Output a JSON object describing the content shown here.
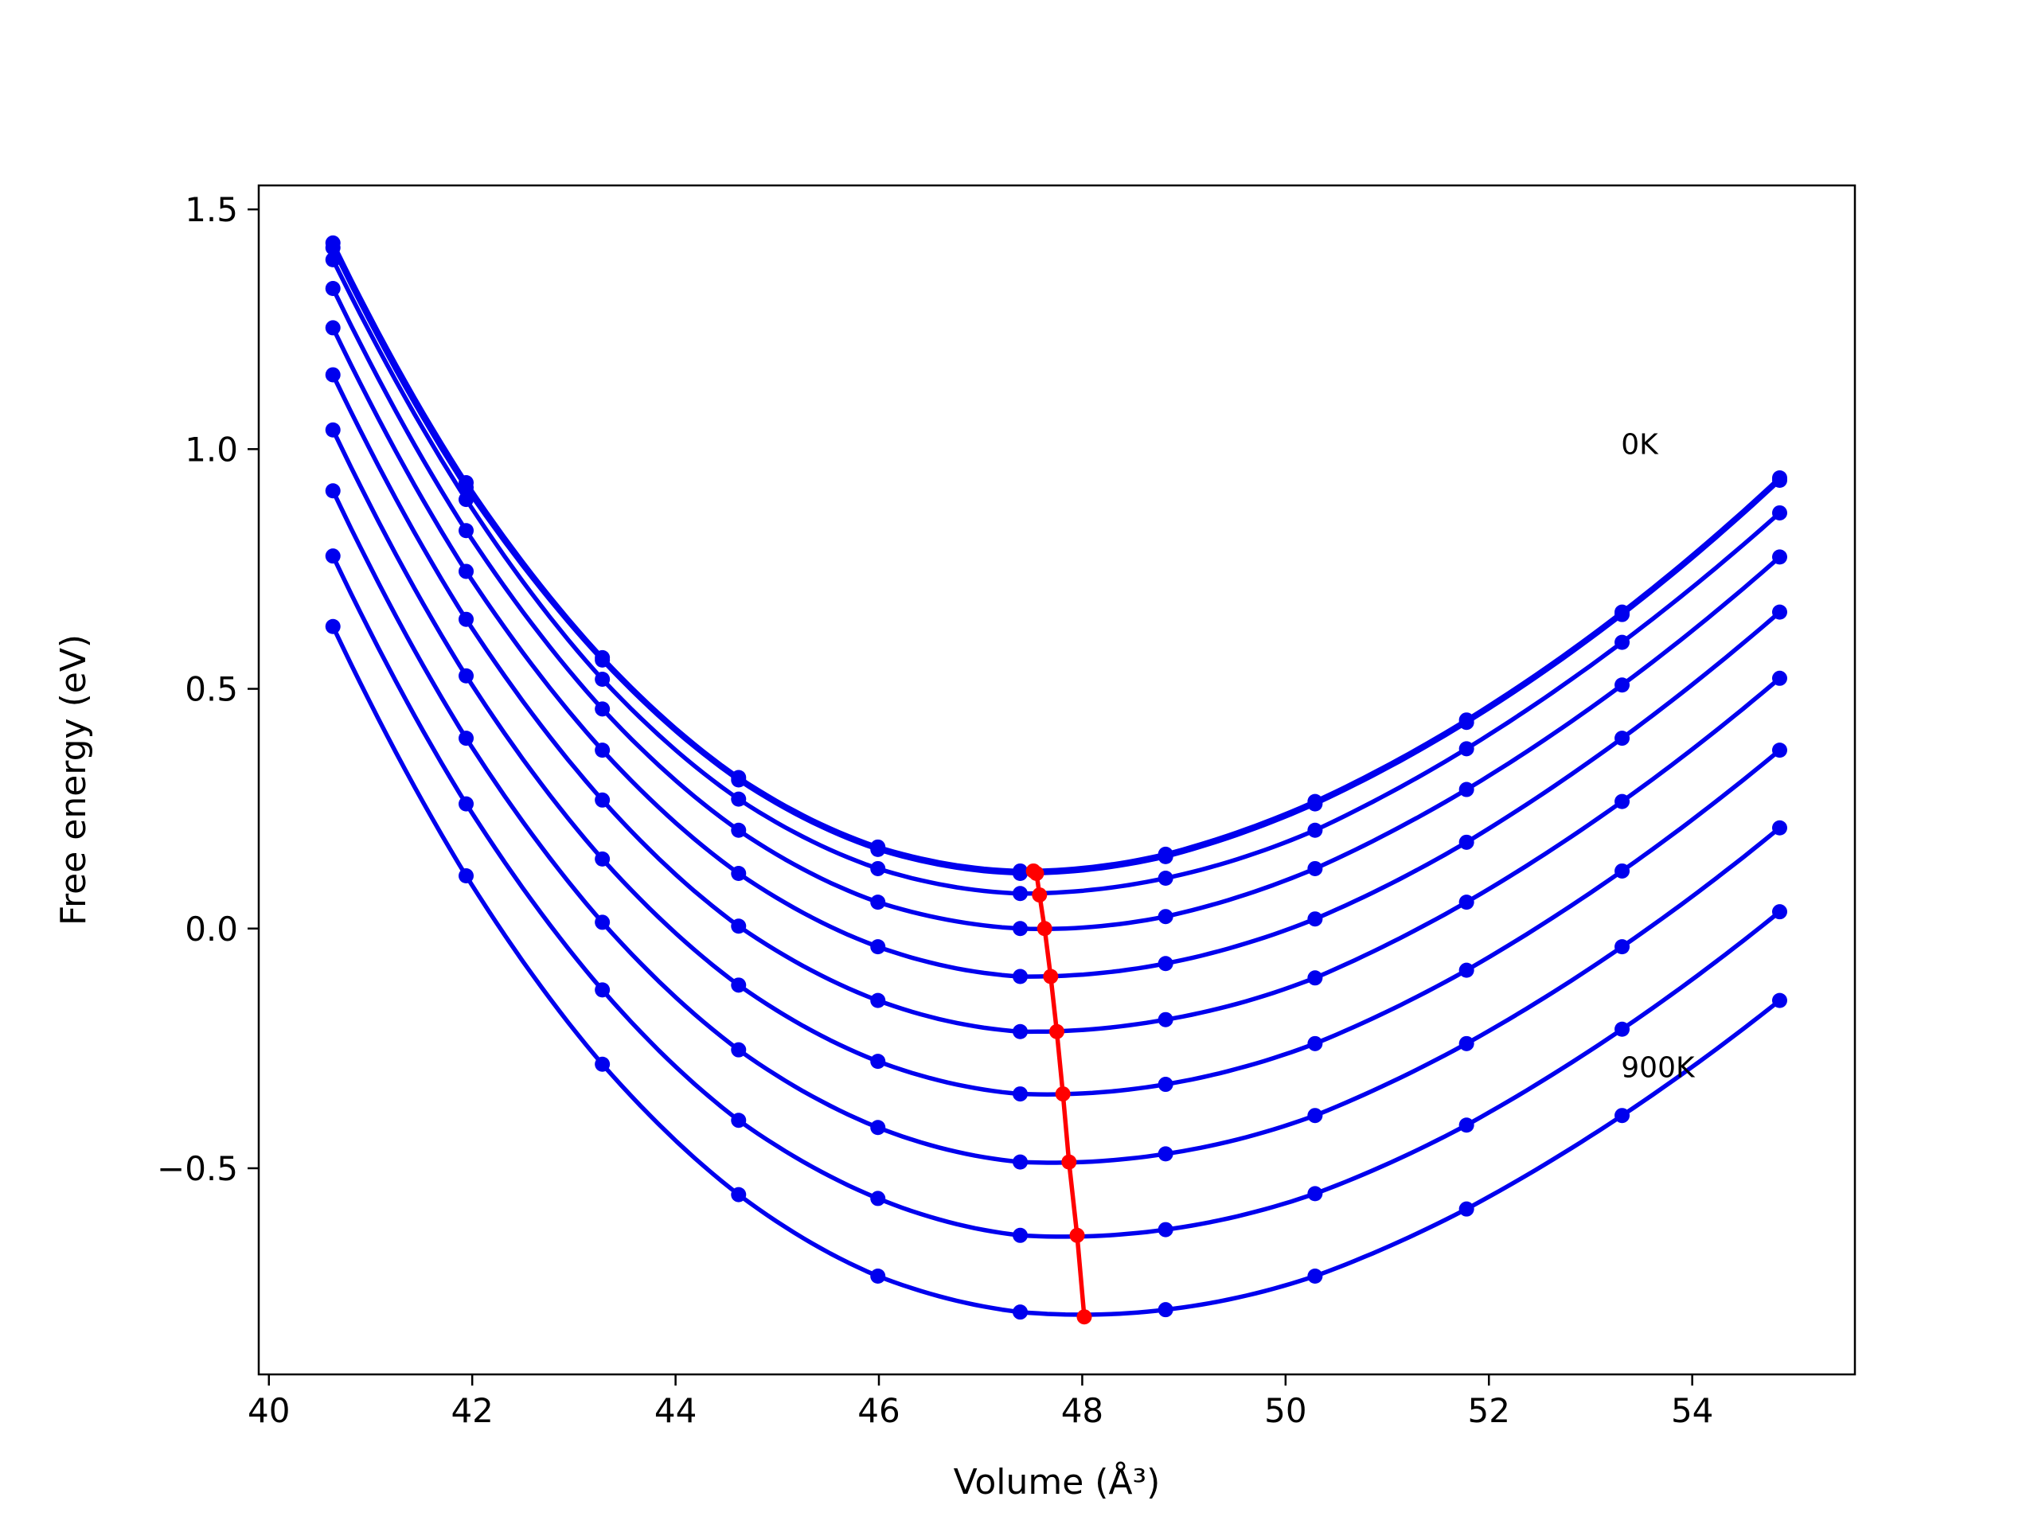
{
  "chart_data": {
    "type": "line",
    "xlabel": "Volume (Å³)",
    "ylabel": "Free energy (eV)",
    "xlim": [
      39.9,
      55.6
    ],
    "ylim": [
      -0.93,
      1.55
    ],
    "xticks": [
      40,
      42,
      44,
      46,
      48,
      50,
      52,
      54
    ],
    "yticks": [
      -0.5,
      0.0,
      0.5,
      1.0,
      1.5
    ],
    "x_tick_labels": [
      "40",
      "42",
      "44",
      "46",
      "48",
      "50",
      "52",
      "54"
    ],
    "y_tick_labels": [
      "−0.5",
      "0.0",
      "0.5",
      "1.0",
      "1.5"
    ],
    "grid": false,
    "annotations": [
      {
        "text": "0K",
        "x": 53.3,
        "y": 0.99
      },
      {
        "text": "900K",
        "x": 53.3,
        "y": -0.31
      }
    ],
    "x": [
      40.63,
      41.94,
      43.28,
      44.62,
      45.99,
      47.39,
      48.82,
      50.29,
      51.78,
      53.31,
      54.86
    ],
    "series": [
      {
        "values": [
          1.43,
          0.93,
          0.565,
          0.315,
          0.17,
          0.12,
          0.155,
          0.265,
          0.435,
          0.66,
          0.94
        ],
        "color": "#0000ee",
        "fit_min": [
          47.52,
          0.12
        ]
      },
      {
        "values": [
          1.42,
          0.92,
          0.56,
          0.31,
          0.165,
          0.115,
          0.15,
          0.26,
          0.43,
          0.655,
          0.935
        ],
        "color": "#0000ee",
        "fit_min": [
          47.55,
          0.115
        ]
      },
      {
        "values": [
          1.395,
          0.895,
          0.52,
          0.27,
          0.125,
          0.073,
          0.105,
          0.205,
          0.375,
          0.597,
          0.867
        ],
        "color": "#0000ee",
        "fit_min": [
          47.58,
          0.07
        ]
      },
      {
        "values": [
          1.335,
          0.83,
          0.458,
          0.205,
          0.055,
          0.0,
          0.025,
          0.125,
          0.29,
          0.508,
          0.775
        ],
        "color": "#0000ee",
        "fit_min": [
          47.63,
          0.0
        ]
      },
      {
        "values": [
          1.253,
          0.745,
          0.372,
          0.115,
          -0.038,
          -0.1,
          -0.073,
          0.02,
          0.18,
          0.397,
          0.66
        ],
        "color": "#0000ee",
        "fit_min": [
          47.69,
          -0.1
        ]
      },
      {
        "values": [
          1.155,
          0.645,
          0.268,
          0.005,
          -0.15,
          -0.215,
          -0.19,
          -0.103,
          0.055,
          0.265,
          0.522
        ],
        "color": "#0000ee",
        "fit_min": [
          47.75,
          -0.215
        ]
      },
      {
        "values": [
          1.04,
          0.527,
          0.145,
          -0.118,
          -0.277,
          -0.345,
          -0.325,
          -0.24,
          -0.087,
          0.12,
          0.372
        ],
        "color": "#0000ee",
        "fit_min": [
          47.81,
          -0.345
        ]
      },
      {
        "values": [
          0.913,
          0.397,
          0.013,
          -0.253,
          -0.415,
          -0.487,
          -0.47,
          -0.39,
          -0.24,
          -0.038,
          0.21
        ],
        "color": "#0000ee",
        "fit_min": [
          47.87,
          -0.487
        ]
      },
      {
        "values": [
          0.777,
          0.26,
          -0.128,
          -0.4,
          -0.563,
          -0.64,
          -0.628,
          -0.553,
          -0.41,
          -0.21,
          0.035
        ],
        "color": "#0000ee",
        "fit_min": [
          47.95,
          -0.64
        ]
      },
      {
        "values": [
          0.63,
          0.11,
          -0.283,
          -0.555,
          -0.725,
          -0.8,
          -0.795,
          -0.725,
          -0.585,
          -0.39,
          -0.15
        ],
        "color": "#0000ee",
        "fit_min": [
          48.02,
          -0.81
        ]
      }
    ],
    "minimum_curve": {
      "color": "#ff0000",
      "points": [
        [
          47.52,
          0.12
        ],
        [
          47.55,
          0.115
        ],
        [
          47.58,
          0.07
        ],
        [
          47.63,
          0.0
        ],
        [
          47.69,
          -0.1
        ],
        [
          47.75,
          -0.215
        ],
        [
          47.81,
          -0.345
        ],
        [
          47.87,
          -0.487
        ],
        [
          47.95,
          -0.64
        ],
        [
          48.02,
          -0.81
        ]
      ]
    }
  }
}
